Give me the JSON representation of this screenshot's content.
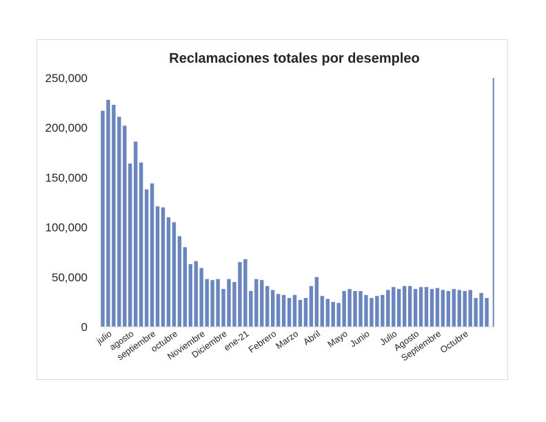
{
  "chart_data": {
    "type": "bar",
    "title": "Reclamaciones totales por desempleo",
    "xlabel": "",
    "ylabel": "",
    "ylim": [
      0,
      250000
    ],
    "yticks": [
      0,
      50000,
      100000,
      150000,
      200000,
      250000
    ],
    "ytick_labels": [
      "0",
      "50,000",
      "100,000",
      "150,000",
      "200,000",
      "250,000"
    ],
    "grid": false,
    "bar_color": "#6a86bd",
    "values": [
      217000,
      228000,
      223000,
      211000,
      202000,
      164000,
      186000,
      165000,
      138000,
      144000,
      121000,
      120000,
      110000,
      105000,
      91000,
      80000,
      63000,
      66000,
      59000,
      48000,
      47000,
      48000,
      38000,
      48000,
      45000,
      65000,
      68000,
      36000,
      48000,
      47000,
      41000,
      37000,
      33000,
      32000,
      29000,
      32000,
      27000,
      29000,
      41000,
      50000,
      31000,
      28000,
      25000,
      24000,
      36000,
      38000,
      36000,
      36000,
      32000,
      29000,
      31000,
      32000,
      37000,
      40000,
      38000,
      41000,
      41000,
      38000,
      40000,
      40000,
      38000,
      39000,
      37000,
      36000,
      38000,
      37000,
      36000,
      37000,
      29000,
      34000,
      29000,
      250000
    ],
    "x_tick_labels": [
      {
        "label": "julio",
        "index": 1
      },
      {
        "label": "agosto",
        "index": 5
      },
      {
        "label": "septiembre",
        "index": 9
      },
      {
        "label": "octubre",
        "index": 13
      },
      {
        "label": "Noviembre",
        "index": 18
      },
      {
        "label": "Diciembre",
        "index": 22
      },
      {
        "label": "ene-21",
        "index": 26
      },
      {
        "label": "Febrero",
        "index": 31
      },
      {
        "label": "Marzo",
        "index": 35
      },
      {
        "label": "Abril",
        "index": 39
      },
      {
        "label": "Mayo",
        "index": 44
      },
      {
        "label": "Junio",
        "index": 48
      },
      {
        "label": "Julio",
        "index": 53
      },
      {
        "label": "Agosto",
        "index": 57
      },
      {
        "label": "Septiembre",
        "index": 61
      },
      {
        "label": "Octubre",
        "index": 66
      }
    ]
  }
}
